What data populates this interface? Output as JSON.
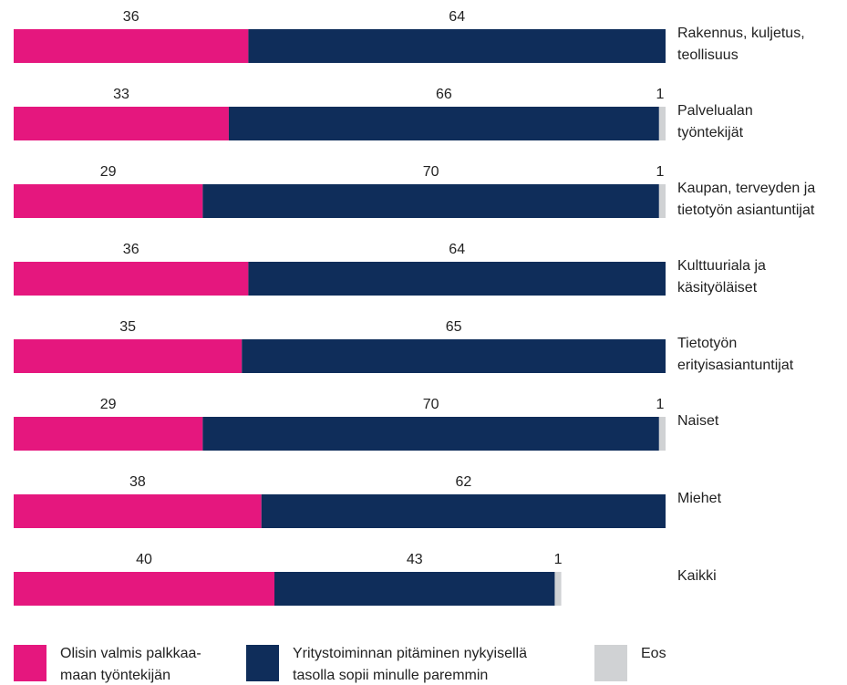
{
  "chart_data": {
    "type": "stacked_barh",
    "categories": [
      "Rakennus, kuljetus,\nteollisuus",
      "Palvelualan\ntyöntekijät",
      "Kaupan, terveyden ja\ntietotyön asiantuntijat",
      "Kulttuuriala ja\nkäsityöläiset",
      "Tietotyön\nerityisasiantuntijat",
      "Naiset",
      "Miehet",
      "Kaikki"
    ],
    "series": [
      {
        "name": "Olisin valmis palkkaa-\nmaan työntekijän",
        "color": "#e5177e",
        "values": [
          36,
          33,
          29,
          36,
          35,
          29,
          38,
          40
        ]
      },
      {
        "name": "Yritystoiminnan pitäminen nykyisellä\ntasolla sopii minulle paremmin",
        "color": "#0f2d5a",
        "values": [
          64,
          66,
          70,
          64,
          65,
          70,
          62,
          43
        ]
      },
      {
        "name": "Eos",
        "color": "#d0d2d4",
        "values": [
          null,
          1,
          1,
          null,
          null,
          1,
          null,
          1
        ]
      }
    ],
    "xlim": [
      0,
      100
    ],
    "legend": "bottom"
  }
}
